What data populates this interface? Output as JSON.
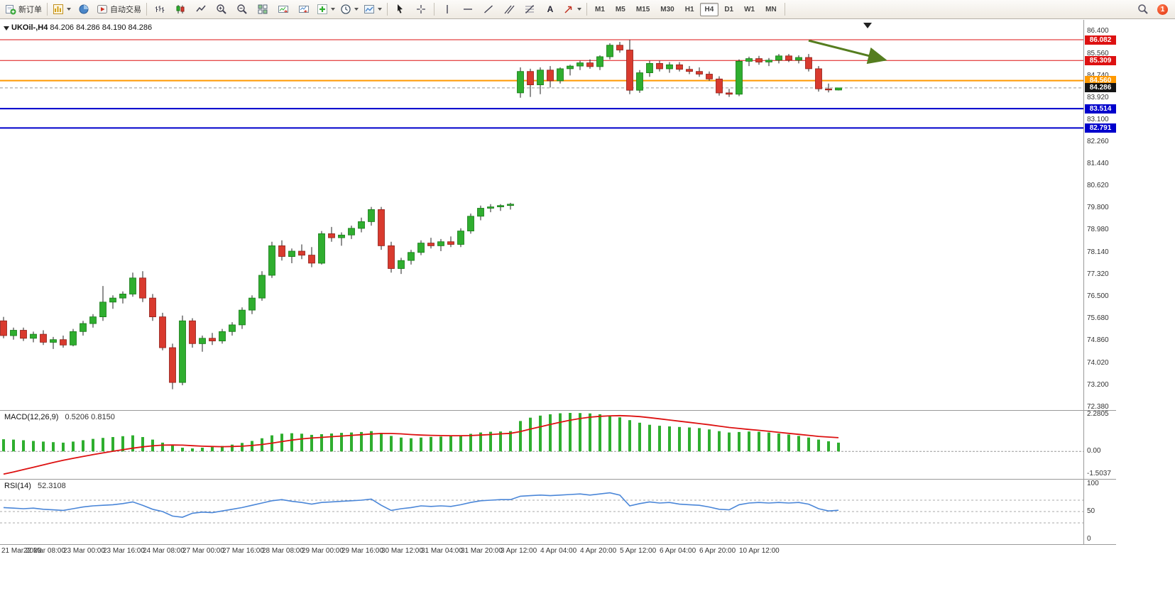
{
  "toolbar": {
    "new_order_label": "新订单",
    "autotrade_label": "自动交易",
    "text_tool_label": "A",
    "timeframes": [
      "M1",
      "M5",
      "M15",
      "M30",
      "H1",
      "H4",
      "D1",
      "W1",
      "MN"
    ],
    "active_timeframe": "H4",
    "notification_badge": "1"
  },
  "chart": {
    "symbol_period": "UKOil-,H4",
    "ohlc": "84.206 84.286 84.190 84.286",
    "price_axis": [
      "86.400",
      "85.560",
      "84.740",
      "83.920",
      "83.100",
      "82.260",
      "81.440",
      "80.620",
      "79.800",
      "78.980",
      "78.140",
      "77.320",
      "76.500",
      "75.680",
      "74.860",
      "74.020",
      "73.200",
      "72.380"
    ],
    "price_tags": [
      {
        "label": "86.082",
        "price": 86.082,
        "color": "#dd1111"
      },
      {
        "label": "85.309",
        "price": 85.309,
        "color": "#dd1111"
      },
      {
        "label": "84.560",
        "price": 84.56,
        "color": "#ff9900"
      },
      {
        "label": "84.286",
        "price": 84.286,
        "color": "#141414"
      },
      {
        "label": "83.514",
        "price": 83.514,
        "color": "#0000cc"
      },
      {
        "label": "82.791",
        "price": 82.791,
        "color": "#0000cc"
      }
    ],
    "time_axis": [
      "21 Mar 2023",
      "22 Mar 08:00",
      "23 Mar 00:00",
      "23 Mar 16:00",
      "24 Mar 08:00",
      "27 Mar 00:00",
      "27 Mar 16:00",
      "28 Mar 08:00",
      "29 Mar 00:00",
      "29 Mar 16:00",
      "30 Mar 12:00",
      "31 Mar 04:00",
      "31 Mar 20:00",
      "3 Apr 12:00",
      "4 Apr 04:00",
      "4 Apr 20:00",
      "5 Apr 12:00",
      "6 Apr 04:00",
      "6 Apr 20:00",
      "10 Apr 12:00"
    ]
  },
  "macd": {
    "label": "MACD(12,26,9)",
    "values": "0.5206 0.8150",
    "axis": [
      "2.2805",
      "0.00",
      "-1.5037"
    ]
  },
  "rsi": {
    "label": "RSI(14)",
    "value": "52.3108",
    "axis": [
      "100",
      "50",
      "0"
    ]
  },
  "colors": {
    "up": "#2fae2f",
    "up_border": "#157815",
    "down": "#d93a2e",
    "down_border": "#8e1f18",
    "wick": "#222222",
    "line_red": "#dd1111",
    "line_blue": "#0000cc",
    "line_orange": "#ff9900",
    "macd_hist": "#2fae2f",
    "macd_signal": "#dd1111",
    "rsi_line": "#4a86d8",
    "arrow": "#557d1f"
  },
  "chart_data": {
    "type": "candlestick",
    "title": "UKOil-,H4",
    "symbol": "UKOil-",
    "timeframe": "H4",
    "current_ohlc": {
      "open": 84.206,
      "high": 84.286,
      "low": 84.19,
      "close": 84.286
    },
    "ylim": [
      72.38,
      86.82
    ],
    "candles_ohlc": [
      [
        75.6,
        75.75,
        74.95,
        75.05
      ],
      [
        75.05,
        75.35,
        74.9,
        75.25
      ],
      [
        75.25,
        75.35,
        74.85,
        74.95
      ],
      [
        74.95,
        75.2,
        74.8,
        75.1
      ],
      [
        75.1,
        75.25,
        74.7,
        74.8
      ],
      [
        74.8,
        75.0,
        74.55,
        74.9
      ],
      [
        74.9,
        75.05,
        74.6,
        74.7
      ],
      [
        74.7,
        75.3,
        74.65,
        75.2
      ],
      [
        75.2,
        75.6,
        75.05,
        75.5
      ],
      [
        75.5,
        75.85,
        75.35,
        75.75
      ],
      [
        75.75,
        76.9,
        75.6,
        76.3
      ],
      [
        76.3,
        76.55,
        76.05,
        76.45
      ],
      [
        76.45,
        76.7,
        76.25,
        76.6
      ],
      [
        76.6,
        77.4,
        76.5,
        77.2
      ],
      [
        77.2,
        77.45,
        76.3,
        76.45
      ],
      [
        76.45,
        76.6,
        75.6,
        75.75
      ],
      [
        75.75,
        75.9,
        74.5,
        74.6
      ],
      [
        74.6,
        74.75,
        73.05,
        73.3
      ],
      [
        73.3,
        75.8,
        73.2,
        75.6
      ],
      [
        75.6,
        75.7,
        74.6,
        74.75
      ],
      [
        74.75,
        75.05,
        74.45,
        74.95
      ],
      [
        74.95,
        75.15,
        74.7,
        74.85
      ],
      [
        74.85,
        75.3,
        74.75,
        75.2
      ],
      [
        75.2,
        75.55,
        75.05,
        75.45
      ],
      [
        75.45,
        76.1,
        75.3,
        76.0
      ],
      [
        76.0,
        76.55,
        75.85,
        76.45
      ],
      [
        76.45,
        77.45,
        76.35,
        77.3
      ],
      [
        77.3,
        78.55,
        77.2,
        78.4
      ],
      [
        78.4,
        78.6,
        77.85,
        78.0
      ],
      [
        78.0,
        78.3,
        77.75,
        78.2
      ],
      [
        78.2,
        78.45,
        77.9,
        78.05
      ],
      [
        78.05,
        78.35,
        77.6,
        77.75
      ],
      [
        77.75,
        78.95,
        77.7,
        78.85
      ],
      [
        78.85,
        79.1,
        78.55,
        78.7
      ],
      [
        78.7,
        78.9,
        78.4,
        78.8
      ],
      [
        78.8,
        79.15,
        78.65,
        79.05
      ],
      [
        79.05,
        79.45,
        78.9,
        79.3
      ],
      [
        79.3,
        79.85,
        79.15,
        79.75
      ],
      [
        79.75,
        79.85,
        78.25,
        78.4
      ],
      [
        78.4,
        78.55,
        77.4,
        77.55
      ],
      [
        77.55,
        77.95,
        77.35,
        77.85
      ],
      [
        77.85,
        78.25,
        77.7,
        78.15
      ],
      [
        78.15,
        78.6,
        78.05,
        78.5
      ],
      [
        78.5,
        78.7,
        78.3,
        78.4
      ],
      [
        78.4,
        78.65,
        78.2,
        78.55
      ],
      [
        78.55,
        78.75,
        78.35,
        78.45
      ],
      [
        78.45,
        79.05,
        78.35,
        78.95
      ],
      [
        78.95,
        79.6,
        78.85,
        79.5
      ],
      [
        79.5,
        79.9,
        79.35,
        79.8
      ],
      [
        79.8,
        79.95,
        79.65,
        79.85
      ],
      [
        79.85,
        79.95,
        79.7,
        79.9
      ],
      [
        79.9,
        80.0,
        79.75,
        79.95
      ],
      [
        84.1,
        85.05,
        83.92,
        84.9
      ],
      [
        84.9,
        85.0,
        83.95,
        84.4
      ],
      [
        84.4,
        85.05,
        84.05,
        84.95
      ],
      [
        84.95,
        85.1,
        84.3,
        84.55
      ],
      [
        84.55,
        85.05,
        84.45,
        85.0
      ],
      [
        85.0,
        85.15,
        84.75,
        85.1
      ],
      [
        85.1,
        85.3,
        84.95,
        85.22
      ],
      [
        85.22,
        85.35,
        85.0,
        85.08
      ],
      [
        85.08,
        85.5,
        84.95,
        85.45
      ],
      [
        85.45,
        85.95,
        85.35,
        85.88
      ],
      [
        85.88,
        86.0,
        85.6,
        85.7
      ],
      [
        85.7,
        86.08,
        84.05,
        84.2
      ],
      [
        84.2,
        84.95,
        84.1,
        84.85
      ],
      [
        84.85,
        85.3,
        84.7,
        85.2
      ],
      [
        85.2,
        85.3,
        84.9,
        85.0
      ],
      [
        85.0,
        85.25,
        84.85,
        85.15
      ],
      [
        85.15,
        85.25,
        84.9,
        84.98
      ],
      [
        84.98,
        85.1,
        84.8,
        84.9
      ],
      [
        84.9,
        85.05,
        84.7,
        84.8
      ],
      [
        84.8,
        84.9,
        84.55,
        84.62
      ],
      [
        84.62,
        84.72,
        84.0,
        84.1
      ],
      [
        84.1,
        84.25,
        83.95,
        84.05
      ],
      [
        84.05,
        85.35,
        83.98,
        85.28
      ],
      [
        85.28,
        85.45,
        85.1,
        85.38
      ],
      [
        85.38,
        85.48,
        85.15,
        85.25
      ],
      [
        85.25,
        85.4,
        85.1,
        85.32
      ],
      [
        85.32,
        85.55,
        85.2,
        85.48
      ],
      [
        85.48,
        85.55,
        85.25,
        85.32
      ],
      [
        85.32,
        85.5,
        85.2,
        85.42
      ],
      [
        85.42,
        85.55,
        84.9,
        85.0
      ],
      [
        85.0,
        85.1,
        84.15,
        84.25
      ],
      [
        84.25,
        84.45,
        84.12,
        84.21
      ],
      [
        84.206,
        84.286,
        84.19,
        84.286
      ]
    ],
    "horizontal_lines": [
      {
        "price": 86.082,
        "color": "#dd1111",
        "width": 1
      },
      {
        "price": 85.309,
        "color": "#dd1111",
        "width": 1
      },
      {
        "price": 84.56,
        "color": "#ff9900",
        "width": 2
      },
      {
        "price": 84.286,
        "color": "#999999",
        "width": 1,
        "dash": true,
        "role": "current-bid"
      },
      {
        "price": 83.514,
        "color": "#0000cc",
        "width": 2
      },
      {
        "price": 82.791,
        "color": "#0000cc",
        "width": 2
      }
    ],
    "annotation_arrow": {
      "from_bar": 81,
      "from_price": 86.05,
      "to_bar": 88.7,
      "to_price": 85.33,
      "color": "#557d1f"
    },
    "indicators": [
      {
        "type": "macd",
        "params": "12,26,9",
        "range": [
          -1.5037,
          2.2805
        ],
        "current_macd": 0.5206,
        "current_signal": 0.815,
        "histogram": [
          0.72,
          0.7,
          0.66,
          0.62,
          0.58,
          0.55,
          0.52,
          0.58,
          0.66,
          0.74,
          0.8,
          0.85,
          0.9,
          0.95,
          0.85,
          0.7,
          0.52,
          0.35,
          0.22,
          0.18,
          0.22,
          0.26,
          0.32,
          0.4,
          0.5,
          0.62,
          0.78,
          0.95,
          1.05,
          1.08,
          1.05,
          0.98,
          1.02,
          1.06,
          1.1,
          1.12,
          1.15,
          1.2,
          1.1,
          0.92,
          0.82,
          0.78,
          0.82,
          0.86,
          0.88,
          0.9,
          0.96,
          1.04,
          1.12,
          1.16,
          1.18,
          1.2,
          1.8,
          2.0,
          2.12,
          2.2,
          2.26,
          2.2805,
          2.27,
          2.25,
          2.2,
          2.12,
          2.02,
          1.85,
          1.7,
          1.58,
          1.52,
          1.48,
          1.45,
          1.42,
          1.38,
          1.3,
          1.2,
          1.12,
          1.15,
          1.18,
          1.16,
          1.12,
          1.06,
          1.0,
          0.92,
          0.82,
          0.7,
          0.6,
          0.5206
        ],
        "signal": [
          -1.35,
          -1.22,
          -1.08,
          -0.94,
          -0.8,
          -0.66,
          -0.53,
          -0.41,
          -0.3,
          -0.19,
          -0.09,
          0.01,
          0.1,
          0.19,
          0.27,
          0.33,
          0.37,
          0.38,
          0.37,
          0.34,
          0.31,
          0.29,
          0.28,
          0.29,
          0.31,
          0.35,
          0.41,
          0.49,
          0.58,
          0.67,
          0.74,
          0.79,
          0.83,
          0.87,
          0.91,
          0.95,
          0.99,
          1.03,
          1.06,
          1.06,
          1.04,
          1.0,
          0.97,
          0.95,
          0.94,
          0.93,
          0.93,
          0.94,
          0.97,
          1.0,
          1.04,
          1.07,
          1.18,
          1.32,
          1.46,
          1.6,
          1.73,
          1.85,
          1.95,
          2.03,
          2.08,
          2.11,
          2.12,
          2.1,
          2.06,
          2.0,
          1.93,
          1.86,
          1.79,
          1.72,
          1.65,
          1.58,
          1.5,
          1.42,
          1.36,
          1.3,
          1.25,
          1.19,
          1.13,
          1.07,
          1.01,
          0.95,
          0.89,
          0.85,
          0.815
        ]
      },
      {
        "type": "rsi",
        "params": "14",
        "range": [
          0,
          100
        ],
        "levels": [
          70,
          50,
          30
        ],
        "current": 52.3108,
        "values": [
          57,
          56,
          55,
          56,
          54,
          53,
          52,
          55,
          58,
          60,
          61,
          62,
          64,
          67,
          61,
          54,
          50,
          42,
          40,
          47,
          49,
          48,
          51,
          54,
          57,
          61,
          65,
          69,
          71,
          68,
          66,
          63,
          66,
          67,
          68,
          69,
          70,
          72,
          61,
          52,
          55,
          57,
          60,
          59,
          60,
          59,
          62,
          66,
          69,
          70,
          71,
          71,
          77,
          78,
          79,
          78,
          79,
          80,
          81,
          79,
          81,
          83,
          79,
          60,
          64,
          67,
          65,
          66,
          63,
          62,
          61,
          58,
          54,
          53,
          62,
          65,
          66,
          65,
          66,
          65,
          66,
          63,
          55,
          51,
          52.31
        ]
      }
    ]
  }
}
